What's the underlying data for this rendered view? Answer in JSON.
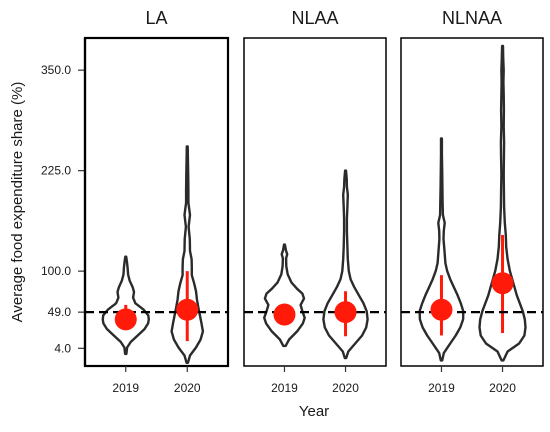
{
  "chart_data": {
    "type": "violin",
    "xlabel": "Year",
    "ylabel": "Average food expenditure share (%)",
    "categories": [
      "2019",
      "2020"
    ],
    "yticks": [
      4.0,
      49.0,
      100.0,
      225.0,
      350.0
    ],
    "ytick_labels": [
      "4.0",
      "49.0",
      "100.0",
      "225.0",
      "350.0"
    ],
    "ylim": [
      -18,
      390
    ],
    "reference_line": 49,
    "colors": {
      "violin": "#2b2b2b",
      "point": "#ff1a0a",
      "reference": "#000000",
      "panel_border": "#000000"
    },
    "panels": [
      {
        "title": "LA",
        "groups": [
          {
            "x": "2019",
            "mean": 40,
            "ci": [
              33,
              58
            ],
            "range": [
              -3,
              118
            ],
            "density": [
              [
                -3,
                0.03
              ],
              [
                5,
                0.06
              ],
              [
                12,
                0.22
              ],
              [
                20,
                0.52
              ],
              [
                28,
                0.82
              ],
              [
                35,
                0.97
              ],
              [
                40,
                1.0
              ],
              [
                45,
                0.98
              ],
              [
                52,
                0.78
              ],
              [
                60,
                0.42
              ],
              [
                67,
                0.32
              ],
              [
                74,
                0.36
              ],
              [
                80,
                0.3
              ],
              [
                88,
                0.17
              ],
              [
                96,
                0.1
              ],
              [
                104,
                0.08
              ],
              [
                112,
                0.05
              ],
              [
                118,
                0.02
              ]
            ]
          },
          {
            "x": "2020",
            "mean": 52,
            "ci": [
              13,
              100
            ],
            "range": [
              -14,
              255
            ],
            "density": [
              [
                -14,
                0.03
              ],
              [
                -5,
                0.12
              ],
              [
                5,
                0.38
              ],
              [
                15,
                0.58
              ],
              [
                25,
                0.68
              ],
              [
                35,
                0.62
              ],
              [
                45,
                0.55
              ],
              [
                55,
                0.48
              ],
              [
                65,
                0.42
              ],
              [
                75,
                0.38
              ],
              [
                85,
                0.3
              ],
              [
                95,
                0.2
              ],
              [
                105,
                0.2
              ],
              [
                115,
                0.19
              ],
              [
                125,
                0.12
              ],
              [
                140,
                0.11
              ],
              [
                155,
                0.06
              ],
              [
                170,
                0.12
              ],
              [
                185,
                0.05
              ],
              [
                200,
                0.05
              ],
              [
                220,
                0.04
              ],
              [
                240,
                0.03
              ],
              [
                255,
                0.02
              ]
            ]
          }
        ]
      },
      {
        "title": "NLAA",
        "groups": [
          {
            "x": "2019",
            "mean": 46,
            "ci": [
              34,
              58
            ],
            "range": [
              7,
              133
            ],
            "density": [
              [
                7,
                0.05
              ],
              [
                15,
                0.2
              ],
              [
                25,
                0.55
              ],
              [
                35,
                0.8
              ],
              [
                42,
                0.88
              ],
              [
                50,
                0.78
              ],
              [
                58,
                0.7
              ],
              [
                66,
                0.85
              ],
              [
                72,
                0.78
              ],
              [
                78,
                0.55
              ],
              [
                86,
                0.3
              ],
              [
                96,
                0.14
              ],
              [
                106,
                0.08
              ],
              [
                116,
                0.07
              ],
              [
                121,
                0.12
              ],
              [
                126,
                0.06
              ],
              [
                133,
                0.02
              ]
            ]
          },
          {
            "x": "2020",
            "mean": 49,
            "ci": [
              19,
              75
            ],
            "range": [
              -8,
              225
            ],
            "density": [
              [
                -8,
                0.03
              ],
              [
                0,
                0.12
              ],
              [
                10,
                0.42
              ],
              [
                20,
                0.72
              ],
              [
                30,
                0.9
              ],
              [
                40,
                0.96
              ],
              [
                50,
                0.92
              ],
              [
                60,
                0.78
              ],
              [
                70,
                0.58
              ],
              [
                80,
                0.38
              ],
              [
                90,
                0.22
              ],
              [
                100,
                0.14
              ],
              [
                115,
                0.1
              ],
              [
                130,
                0.08
              ],
              [
                150,
                0.06
              ],
              [
                165,
                0.06
              ],
              [
                180,
                0.08
              ],
              [
                195,
                0.1
              ],
              [
                205,
                0.06
              ],
              [
                215,
                0.05
              ],
              [
                225,
                0.02
              ]
            ]
          }
        ]
      },
      {
        "title": "NLNAA",
        "groups": [
          {
            "x": "2019",
            "mean": 52,
            "ci": [
              20,
              95
            ],
            "range": [
              -11,
              265
            ],
            "density": [
              [
                -11,
                0.03
              ],
              [
                -2,
                0.1
              ],
              [
                10,
                0.38
              ],
              [
                20,
                0.62
              ],
              [
                30,
                0.82
              ],
              [
                40,
                0.94
              ],
              [
                50,
                0.95
              ],
              [
                60,
                0.84
              ],
              [
                70,
                0.7
              ],
              [
                80,
                0.54
              ],
              [
                90,
                0.38
              ],
              [
                100,
                0.25
              ],
              [
                110,
                0.17
              ],
              [
                125,
                0.13
              ],
              [
                140,
                0.09
              ],
              [
                150,
                0.1
              ],
              [
                160,
                0.14
              ],
              [
                170,
                0.06
              ],
              [
                185,
                0.05
              ],
              [
                205,
                0.04
              ],
              [
                225,
                0.03
              ],
              [
                245,
                0.02
              ],
              [
                265,
                0.02
              ]
            ]
          },
          {
            "x": "2020",
            "mean": 85,
            "ci": [
              23,
              145
            ],
            "range": [
              -11,
              380
            ],
            "density": [
              [
                -11,
                0.04
              ],
              [
                0,
                0.22
              ],
              [
                10,
                0.72
              ],
              [
                20,
                0.95
              ],
              [
                30,
                1.0
              ],
              [
                40,
                0.97
              ],
              [
                50,
                0.88
              ],
              [
                60,
                0.75
              ],
              [
                70,
                0.62
              ],
              [
                80,
                0.52
              ],
              [
                90,
                0.42
              ],
              [
                100,
                0.32
              ],
              [
                115,
                0.22
              ],
              [
                130,
                0.16
              ],
              [
                145,
                0.14
              ],
              [
                160,
                0.1
              ],
              [
                180,
                0.07
              ],
              [
                200,
                0.06
              ],
              [
                220,
                0.05
              ],
              [
                240,
                0.06
              ],
              [
                260,
                0.07
              ],
              [
                280,
                0.05
              ],
              [
                300,
                0.06
              ],
              [
                320,
                0.05
              ],
              [
                335,
                0.04
              ],
              [
                350,
                0.05
              ],
              [
                365,
                0.03
              ],
              [
                380,
                0.02
              ]
            ]
          }
        ]
      }
    ]
  }
}
